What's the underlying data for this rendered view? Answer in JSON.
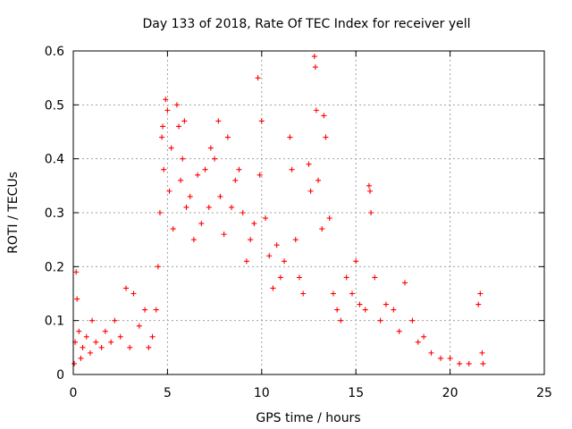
{
  "chart_data": {
    "type": "scatter",
    "title": "Day 133 of 2018, Rate Of TEC Index for receiver yell",
    "xlabel": "GPS time / hours",
    "ylabel": "ROTI / TECUs",
    "xlim": [
      0,
      25
    ],
    "ylim": [
      0,
      0.6
    ],
    "xticks": [
      "0",
      "5",
      "10",
      "15",
      "20",
      "25"
    ],
    "yticks": [
      "0",
      "0.1",
      "0.2",
      "0.3",
      "0.4",
      "0.5",
      "0.6"
    ],
    "grid": true,
    "marker": "plus",
    "color": "#ff0000",
    "series": [
      {
        "points": [
          [
            0.05,
            0.02
          ],
          [
            0.1,
            0.06
          ],
          [
            0.15,
            0.19
          ],
          [
            0.2,
            0.14
          ],
          [
            0.3,
            0.08
          ],
          [
            0.4,
            0.03
          ],
          [
            0.5,
            0.05
          ],
          [
            0.7,
            0.07
          ],
          [
            0.9,
            0.04
          ],
          [
            1.0,
            0.1
          ],
          [
            1.2,
            0.06
          ],
          [
            1.5,
            0.05
          ],
          [
            1.7,
            0.08
          ],
          [
            2.0,
            0.06
          ],
          [
            2.2,
            0.1
          ],
          [
            2.5,
            0.07
          ],
          [
            2.8,
            0.16
          ],
          [
            3.0,
            0.05
          ],
          [
            3.2,
            0.15
          ],
          [
            3.5,
            0.09
          ],
          [
            3.8,
            0.12
          ],
          [
            4.0,
            0.05
          ],
          [
            4.2,
            0.07
          ],
          [
            4.4,
            0.12
          ],
          [
            4.5,
            0.2
          ],
          [
            4.6,
            0.3
          ],
          [
            4.7,
            0.44
          ],
          [
            4.75,
            0.46
          ],
          [
            4.8,
            0.38
          ],
          [
            4.9,
            0.51
          ],
          [
            5.0,
            0.49
          ],
          [
            5.1,
            0.34
          ],
          [
            5.2,
            0.42
          ],
          [
            5.3,
            0.27
          ],
          [
            5.5,
            0.5
          ],
          [
            5.6,
            0.46
          ],
          [
            5.7,
            0.36
          ],
          [
            5.8,
            0.4
          ],
          [
            5.9,
            0.47
          ],
          [
            6.0,
            0.31
          ],
          [
            6.2,
            0.33
          ],
          [
            6.4,
            0.25
          ],
          [
            6.6,
            0.37
          ],
          [
            6.8,
            0.28
          ],
          [
            7.0,
            0.38
          ],
          [
            7.2,
            0.31
          ],
          [
            7.3,
            0.42
          ],
          [
            7.5,
            0.4
          ],
          [
            7.7,
            0.47
          ],
          [
            7.8,
            0.33
          ],
          [
            8.0,
            0.26
          ],
          [
            8.2,
            0.44
          ],
          [
            8.4,
            0.31
          ],
          [
            8.6,
            0.36
          ],
          [
            8.8,
            0.38
          ],
          [
            9.0,
            0.3
          ],
          [
            9.2,
            0.21
          ],
          [
            9.4,
            0.25
          ],
          [
            9.6,
            0.28
          ],
          [
            9.8,
            0.55
          ],
          [
            9.9,
            0.37
          ],
          [
            10.0,
            0.47
          ],
          [
            10.2,
            0.29
          ],
          [
            10.4,
            0.22
          ],
          [
            10.6,
            0.16
          ],
          [
            10.8,
            0.24
          ],
          [
            11.0,
            0.18
          ],
          [
            11.2,
            0.21
          ],
          [
            11.5,
            0.44
          ],
          [
            11.6,
            0.38
          ],
          [
            11.8,
            0.25
          ],
          [
            12.0,
            0.18
          ],
          [
            12.2,
            0.15
          ],
          [
            12.5,
            0.39
          ],
          [
            12.6,
            0.34
          ],
          [
            12.8,
            0.59
          ],
          [
            12.85,
            0.57
          ],
          [
            12.9,
            0.49
          ],
          [
            13.0,
            0.36
          ],
          [
            13.2,
            0.27
          ],
          [
            13.3,
            0.48
          ],
          [
            13.4,
            0.44
          ],
          [
            13.6,
            0.29
          ],
          [
            13.8,
            0.15
          ],
          [
            14.0,
            0.12
          ],
          [
            14.2,
            0.1
          ],
          [
            14.5,
            0.18
          ],
          [
            14.8,
            0.15
          ],
          [
            15.0,
            0.21
          ],
          [
            15.2,
            0.13
          ],
          [
            15.5,
            0.12
          ],
          [
            15.7,
            0.35
          ],
          [
            15.75,
            0.34
          ],
          [
            15.8,
            0.3
          ],
          [
            16.0,
            0.18
          ],
          [
            16.3,
            0.1
          ],
          [
            16.6,
            0.13
          ],
          [
            17.0,
            0.12
          ],
          [
            17.3,
            0.08
          ],
          [
            17.6,
            0.17
          ],
          [
            18.0,
            0.1
          ],
          [
            18.3,
            0.06
          ],
          [
            18.6,
            0.07
          ],
          [
            19.0,
            0.04
          ],
          [
            19.5,
            0.03
          ],
          [
            20.0,
            0.03
          ],
          [
            20.5,
            0.02
          ],
          [
            21.0,
            0.02
          ],
          [
            21.5,
            0.13
          ],
          [
            21.6,
            0.15
          ],
          [
            21.7,
            0.04
          ],
          [
            21.75,
            0.02
          ]
        ]
      }
    ]
  }
}
